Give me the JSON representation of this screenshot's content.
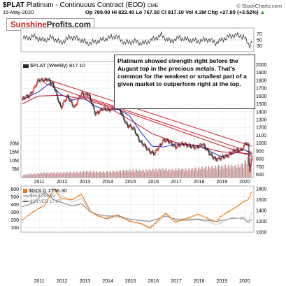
{
  "header": {
    "symbol": "$PLAT",
    "subtitle": "Platinum - Continuous Contract (EOD)",
    "exchange": "CME",
    "date": "15-May-2020",
    "quote_open": "Op 789.00",
    "quote_high": "Hi 822.40",
    "quote_low": "Lo 767.50",
    "quote_close": "Cl 817.10",
    "quote_vol": "Vol 4.3M",
    "quote_chg": "Chg +27.80 (+3.52%)",
    "quote_chg_arrow": "▲",
    "source": "© StockCharts.com"
  },
  "logo": {
    "part1": "Sunshine",
    "part2": "Profits.com"
  },
  "annotation": "Platinum showed strength right before the August top in the precious metals. That's common for the weakest or smallest part of a given market to outperform right at the top.",
  "legend": {
    "main": "$PLAT (Weekly) 817.10",
    "gold": "$GOLD 1756.30",
    "hui": "$HUI 296.92",
    "silver": "$SILVER 17.07"
  },
  "colors": {
    "candle_up": "#d42a2a",
    "candle_down": "#222222",
    "ma_short": "#1f2fbf",
    "ma_long": "#c8102e",
    "trendline": "#d0303a",
    "volume": "#d98a8a",
    "gold": "#ee7a12",
    "hui": "#b5b5b5",
    "silver": "#6a6a6a",
    "indicator": "#222222"
  },
  "chart_data": [
    {
      "type": "line",
      "panel": "indicator",
      "y_ticks": [
        30,
        50,
        70
      ],
      "ylim": [
        10,
        90
      ],
      "x": [
        2010.4,
        2010.8,
        2011.2,
        2011.6,
        2012.0,
        2012.4,
        2012.8,
        2013.2,
        2013.6,
        2014.0,
        2014.4,
        2014.8,
        2015.2,
        2015.6,
        2016.0,
        2016.4,
        2016.8,
        2017.2,
        2017.6,
        2018.0,
        2018.4,
        2018.8,
        2019.2,
        2019.6,
        2020.0,
        2020.25,
        2020.4
      ],
      "values": [
        55,
        62,
        48,
        58,
        40,
        60,
        52,
        38,
        45,
        56,
        62,
        40,
        45,
        38,
        50,
        66,
        44,
        58,
        50,
        45,
        52,
        40,
        56,
        66,
        62,
        30,
        48
      ]
    },
    {
      "type": "candlestick",
      "panel": "main",
      "title": "$PLAT (Weekly) 817.10",
      "x_ticks": [
        "2011",
        "2012",
        "2013",
        "2014",
        "2015",
        "2016",
        "2017",
        "2018",
        "2019",
        "2020"
      ],
      "y_ticks": [
        600,
        700,
        800,
        900,
        1000,
        1100,
        1200,
        1300,
        1400,
        1500,
        1600,
        1700,
        1800,
        1900,
        2000
      ],
      "ylim": [
        560,
        2040
      ],
      "volume_ticks": [
        "5M",
        "10M",
        "15M",
        "20M"
      ],
      "price_path": {
        "x": [
          2010.3,
          2010.6,
          2011.0,
          2011.4,
          2011.7,
          2012.0,
          2012.3,
          2012.6,
          2012.9,
          2013.2,
          2013.5,
          2013.8,
          2014.1,
          2014.5,
          2014.9,
          2015.2,
          2015.5,
          2015.9,
          2016.1,
          2016.5,
          2016.8,
          2017.0,
          2017.3,
          2017.6,
          2017.9,
          2018.2,
          2018.5,
          2018.8,
          2019.0,
          2019.3,
          2019.6,
          2019.9,
          2020.1,
          2020.2,
          2020.25,
          2020.3,
          2020.37
        ],
        "values": [
          1560,
          1600,
          1790,
          1820,
          1720,
          1450,
          1600,
          1450,
          1640,
          1620,
          1380,
          1430,
          1430,
          1480,
          1220,
          1180,
          1000,
          900,
          860,
          1050,
          1000,
          960,
          980,
          980,
          930,
          1000,
          860,
          800,
          800,
          850,
          900,
          920,
          1000,
          960,
          620,
          720,
          817
        ]
      },
      "ma_short": {
        "x": [
          2010.3,
          2011.0,
          2011.5,
          2012.0,
          2012.5,
          2013.0,
          2013.5,
          2014.0,
          2014.5,
          2015.0,
          2015.5,
          2016.0,
          2016.5,
          2017.0,
          2017.5,
          2018.0,
          2018.5,
          2019.0,
          2019.5,
          2020.0,
          2020.37
        ],
        "values": [
          1550,
          1650,
          1760,
          1620,
          1550,
          1580,
          1470,
          1420,
          1430,
          1350,
          1140,
          960,
          950,
          990,
          980,
          970,
          900,
          830,
          860,
          920,
          860
        ]
      },
      "ma_long": {
        "x": [
          2010.3,
          2011.0,
          2012.0,
          2013.0,
          2014.0,
          2015.0,
          2016.0,
          2017.0,
          2018.0,
          2019.0,
          2020.0,
          2020.37
        ],
        "values": [
          1500,
          1600,
          1610,
          1560,
          1470,
          1300,
          1120,
          1010,
          960,
          890,
          870,
          860
        ]
      },
      "trendlines": [
        {
          "x": [
            2011.3,
            2020.37
          ],
          "values": [
            1820,
            960
          ]
        },
        {
          "x": [
            2011.3,
            2020.37
          ],
          "values": [
            1760,
            830
          ]
        },
        {
          "x": [
            2013.0,
            2020.37
          ],
          "values": [
            1600,
            880
          ]
        }
      ],
      "volume": {
        "x": [
          2010.4,
          2010.8,
          2011.2,
          2011.6,
          2012.0,
          2012.4,
          2012.8,
          2013.2,
          2013.6,
          2014.0,
          2014.4,
          2014.8,
          2015.2,
          2015.6,
          2016.0,
          2016.4,
          2016.8,
          2017.2,
          2017.6,
          2018.0,
          2018.4,
          2018.8,
          2019.2,
          2019.6,
          2020.0,
          2020.2,
          2020.37
        ],
        "values": [
          1.5,
          2.0,
          2.5,
          2.6,
          2.7,
          2.8,
          3.0,
          3.4,
          3.0,
          3.2,
          3.4,
          3.8,
          4.0,
          3.8,
          4.2,
          4.6,
          4.2,
          4.6,
          4.4,
          5.0,
          5.5,
          5.8,
          6.2,
          6.0,
          7.0,
          11.0,
          13.0
        ]
      }
    },
    {
      "type": "line",
      "panel": "ratios",
      "x_ticks": [
        "2011",
        "2012",
        "2013",
        "2014",
        "2015",
        "2016",
        "2017",
        "2018",
        "2019",
        "2020"
      ],
      "left_ticks": [
        100,
        200,
        300,
        400,
        500,
        600
      ],
      "right_ticks": [
        1000,
        1200,
        1400,
        1600,
        1800
      ],
      "series": [
        {
          "name": "$GOLD 1756.30",
          "axis": "right",
          "x": [
            2010.3,
            2010.8,
            2011.3,
            2011.7,
            2012.0,
            2012.5,
            2012.9,
            2013.3,
            2013.6,
            2014.0,
            2014.5,
            2015.0,
            2015.5,
            2015.9,
            2016.3,
            2016.6,
            2017.0,
            2017.5,
            2018.0,
            2018.5,
            2018.8,
            2019.0,
            2019.5,
            2019.8,
            2020.0,
            2020.2,
            2020.37
          ],
          "values": [
            1220,
            1380,
            1500,
            1800,
            1620,
            1600,
            1700,
            1380,
            1300,
            1250,
            1320,
            1200,
            1160,
            1070,
            1240,
            1350,
            1180,
            1250,
            1330,
            1240,
            1190,
            1290,
            1420,
            1500,
            1560,
            1600,
            1756
          ]
        },
        {
          "name": "$HUI 296.92",
          "axis": "left",
          "x": [
            2010.3,
            2010.8,
            2011.3,
            2011.7,
            2012.0,
            2012.5,
            2012.9,
            2013.3,
            2013.6,
            2014.0,
            2014.5,
            2015.0,
            2015.5,
            2015.9,
            2016.3,
            2016.6,
            2017.0,
            2017.5,
            2018.0,
            2018.5,
            2018.8,
            2019.0,
            2019.5,
            2019.8,
            2020.0,
            2020.2,
            2020.37
          ],
          "values": [
            430,
            560,
            540,
            620,
            520,
            430,
            480,
            300,
            260,
            210,
            240,
            190,
            150,
            110,
            180,
            280,
            190,
            190,
            200,
            170,
            140,
            160,
            230,
            220,
            240,
            180,
            297
          ]
        },
        {
          "name": "$SILVER 17.07",
          "axis": "left",
          "x": [
            2010.3,
            2010.8,
            2011.3,
            2011.7,
            2012.0,
            2012.5,
            2012.9,
            2013.3,
            2013.6,
            2014.0,
            2014.5,
            2015.0,
            2015.5,
            2015.9,
            2016.3,
            2016.6,
            2017.0,
            2017.5,
            2018.0,
            2018.5,
            2018.8,
            2019.0,
            2019.5,
            2019.8,
            2020.0,
            2020.2,
            2020.37
          ],
          "values": [
            370,
            420,
            560,
            460,
            430,
            380,
            410,
            300,
            270,
            250,
            250,
            210,
            190,
            180,
            220,
            250,
            210,
            210,
            210,
            190,
            180,
            190,
            220,
            220,
            220,
            160,
            210
          ]
        }
      ]
    }
  ]
}
